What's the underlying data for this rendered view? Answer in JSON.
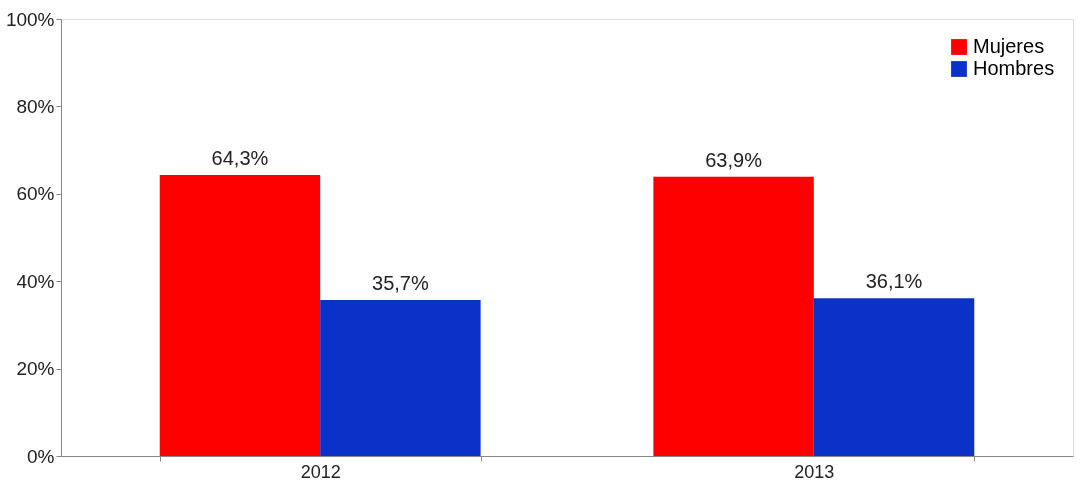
{
  "chart_data": {
    "type": "bar",
    "categories": [
      "2012",
      "2013"
    ],
    "series": [
      {
        "name": "Mujeres",
        "color": "#ff0000",
        "values": [
          64.3,
          63.9
        ],
        "value_labels": [
          "64,3%",
          "63,9%"
        ]
      },
      {
        "name": "Hombres",
        "color": "#0a32c8",
        "values": [
          35.7,
          36.1
        ],
        "value_labels": [
          "35,7%",
          "36,1%"
        ]
      }
    ],
    "ylim": [
      0,
      100
    ],
    "yticks": [
      {
        "value": 0,
        "label": "0%"
      },
      {
        "value": 20,
        "label": "20%"
      },
      {
        "value": 40,
        "label": "40%"
      },
      {
        "value": 60,
        "label": "60%"
      },
      {
        "value": 80,
        "label": "80%"
      },
      {
        "value": 100,
        "label": "100%"
      }
    ],
    "grid": false,
    "legend": "top right"
  }
}
